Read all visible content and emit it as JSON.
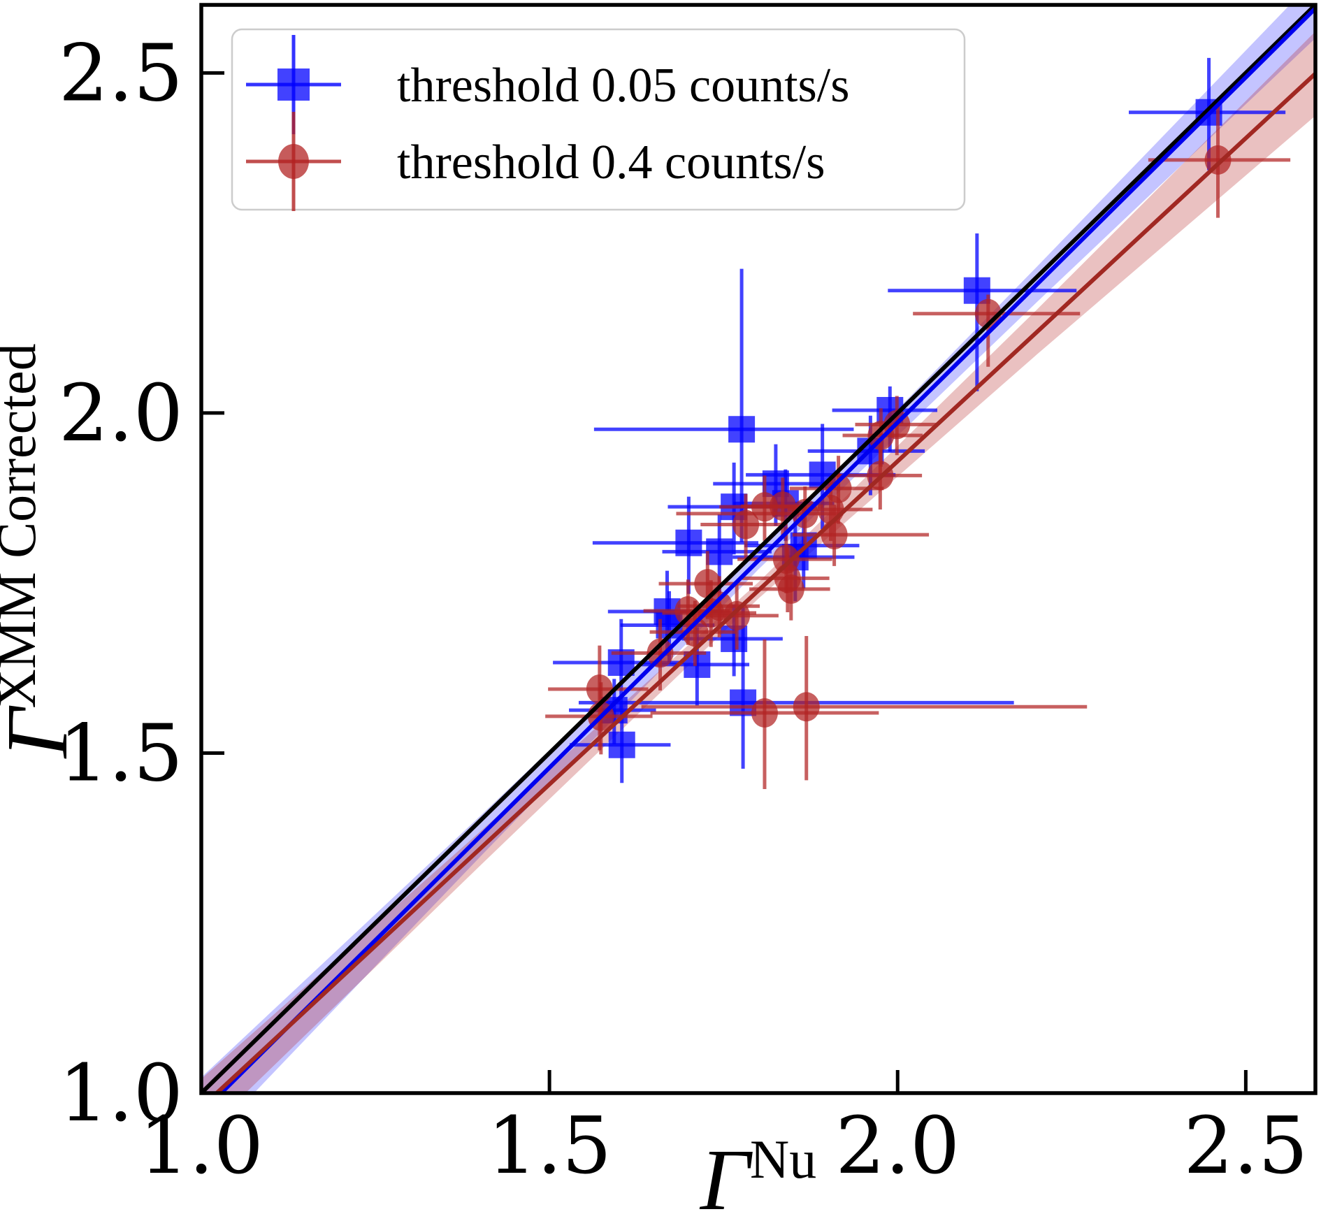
{
  "chart_data": {
    "type": "scatter",
    "title": "",
    "xlabel": {
      "base": "Γ",
      "superscript": "Nu"
    },
    "ylabel": {
      "base": "Γ",
      "superscript": "XMM Corrected"
    },
    "xlim": [
      1.0,
      2.6
    ],
    "ylim": [
      1.0,
      2.6
    ],
    "grid": false,
    "xticks": {
      "values": [
        1.0,
        1.5,
        2.0,
        2.5
      ],
      "labels": [
        "1.0",
        "1.5",
        "2.0",
        "2.5"
      ]
    },
    "yticks": {
      "values": [
        1.0,
        1.5,
        2.0,
        2.5
      ],
      "labels": [
        "1.0",
        "1.5",
        "2.0",
        "2.5"
      ]
    },
    "legend": {
      "position": "upper left",
      "entries": [
        {
          "label": "threshold 0.05 counts/s",
          "marker": "square",
          "color": "#0000ff"
        },
        {
          "label": "threshold 0.4 counts/s",
          "marker": "circle",
          "color": "#b22222"
        }
      ]
    },
    "identity_line": {
      "slope": 1,
      "intercept": 0,
      "color": "#000000"
    },
    "fits": [
      {
        "series": "threshold 0.05 counts/s",
        "slope": 1.015,
        "intercept": -0.044,
        "line_color": "#0000ee",
        "band": {
          "x": [
            1.0,
            1.4,
            1.8,
            2.2,
            2.6
          ],
          "halfwidth": [
            0.052,
            0.03,
            0.013,
            0.026,
            0.044
          ]
        },
        "band_color": "#3a3aff",
        "band_alpha": 0.3
      },
      {
        "series": "threshold 0.4 counts/s",
        "slope": 0.95,
        "intercept": 0.029,
        "line_color": "#a12822",
        "band": {
          "x": [
            1.0,
            1.4,
            1.8,
            2.2,
            2.6
          ],
          "halfwidth": [
            0.042,
            0.025,
            0.012,
            0.033,
            0.062
          ]
        },
        "band_color": "#b22222",
        "band_alpha": 0.28
      }
    ],
    "point_format": [
      "x",
      "y",
      "xerr_minus",
      "xerr_plus",
      "yerr_minus",
      "yerr_plus"
    ],
    "series": [
      {
        "name": "threshold 0.05 counts/s",
        "marker": "square",
        "color": "#0000ff",
        "alpha": 0.74,
        "points": [
          [
            2.447,
            2.442,
            0.115,
            0.11,
            0.085,
            0.08
          ],
          [
            2.114,
            2.18,
            0.128,
            0.143,
            0.148,
            0.084
          ],
          [
            1.989,
            2.004,
            0.083,
            0.068,
            0.061,
            0.035
          ],
          [
            1.961,
            1.944,
            0.09,
            0.078,
            0.065,
            0.052
          ],
          [
            1.892,
            1.909,
            0.11,
            0.105,
            0.08,
            0.075
          ],
          [
            1.825,
            1.896,
            0.09,
            0.088,
            0.062,
            0.058
          ],
          [
            1.839,
            1.867,
            0.075,
            0.07,
            0.055,
            0.05
          ],
          [
            1.776,
            1.976,
            0.212,
            0.161,
            0.166,
            0.236
          ],
          [
            1.765,
            1.862,
            0.095,
            0.09,
            0.07,
            0.065
          ],
          [
            1.7,
            1.809,
            0.138,
            0.1,
            0.075,
            0.068
          ],
          [
            1.744,
            1.796,
            0.082,
            0.075,
            0.06,
            0.055
          ],
          [
            1.865,
            1.805,
            0.085,
            0.08,
            0.063,
            0.058
          ],
          [
            1.853,
            1.788,
            0.09,
            0.085,
            0.065,
            0.06
          ],
          [
            1.669,
            1.708,
            0.085,
            0.08,
            0.065,
            0.06
          ],
          [
            1.672,
            1.688,
            0.07,
            0.065,
            0.055,
            0.05
          ],
          [
            1.765,
            1.668,
            0.075,
            0.07,
            0.055,
            0.05
          ],
          [
            1.603,
            1.633,
            0.098,
            0.09,
            0.07,
            0.064
          ],
          [
            1.712,
            1.63,
            0.08,
            0.075,
            0.06,
            0.055
          ],
          [
            1.593,
            1.563,
            0.065,
            0.06,
            0.05,
            0.046
          ],
          [
            1.604,
            1.512,
            0.075,
            0.07,
            0.056,
            0.05
          ],
          [
            1.778,
            1.574,
            0.236,
            0.389,
            0.097,
            0.14
          ]
        ]
      },
      {
        "name": "threshold 0.4 counts/s",
        "marker": "circle",
        "color": "#b22222",
        "alpha": 0.72,
        "points": [
          [
            2.46,
            2.372,
            0.1,
            0.104,
            0.085,
            0.082
          ],
          [
            2.13,
            2.146,
            0.108,
            0.132,
            0.078,
            0.028
          ],
          [
            1.976,
            1.967,
            0.055,
            0.06,
            0.046,
            0.04
          ],
          [
            1.999,
            1.983,
            0.06,
            0.056,
            0.045,
            0.042
          ],
          [
            1.975,
            1.908,
            0.065,
            0.06,
            0.05,
            0.045
          ],
          [
            1.915,
            1.889,
            0.07,
            0.065,
            0.052,
            0.048
          ],
          [
            1.904,
            1.858,
            0.062,
            0.06,
            0.046,
            0.044
          ],
          [
            1.867,
            1.852,
            0.185,
            0.055,
            0.045,
            0.04
          ],
          [
            1.909,
            1.821,
            0.06,
            0.136,
            0.046,
            0.044
          ],
          [
            1.84,
            1.785,
            0.07,
            0.066,
            0.05,
            0.048
          ],
          [
            1.842,
            1.757,
            0.065,
            0.06,
            0.05,
            0.045
          ],
          [
            1.847,
            1.741,
            0.06,
            0.056,
            0.046,
            0.044
          ],
          [
            1.809,
            1.862,
            0.065,
            0.06,
            0.05,
            0.046
          ],
          [
            1.835,
            1.863,
            0.06,
            0.058,
            0.045,
            0.042
          ],
          [
            1.782,
            1.836,
            0.065,
            0.06,
            0.05,
            0.045
          ],
          [
            1.727,
            1.749,
            0.07,
            0.065,
            0.052,
            0.048
          ],
          [
            1.744,
            1.716,
            0.06,
            0.058,
            0.046,
            0.044
          ],
          [
            1.769,
            1.702,
            0.064,
            0.06,
            0.05,
            0.046
          ],
          [
            1.732,
            1.706,
            0.07,
            0.065,
            0.05,
            0.048
          ],
          [
            1.709,
            1.678,
            0.065,
            0.06,
            0.05,
            0.046
          ],
          [
            1.659,
            1.647,
            0.07,
            0.066,
            0.055,
            0.05
          ],
          [
            1.699,
            1.709,
            0.064,
            0.06,
            0.05,
            0.046
          ],
          [
            1.572,
            1.594,
            0.074,
            0.07,
            0.09,
            0.064
          ],
          [
            1.574,
            1.554,
            0.08,
            0.074,
            0.056,
            0.05
          ],
          [
            1.809,
            1.559,
            0.164,
            0.164,
            0.112,
            0.108
          ],
          [
            1.869,
            1.568,
            0.237,
            0.403,
            0.108,
            0.104
          ]
        ]
      }
    ]
  }
}
